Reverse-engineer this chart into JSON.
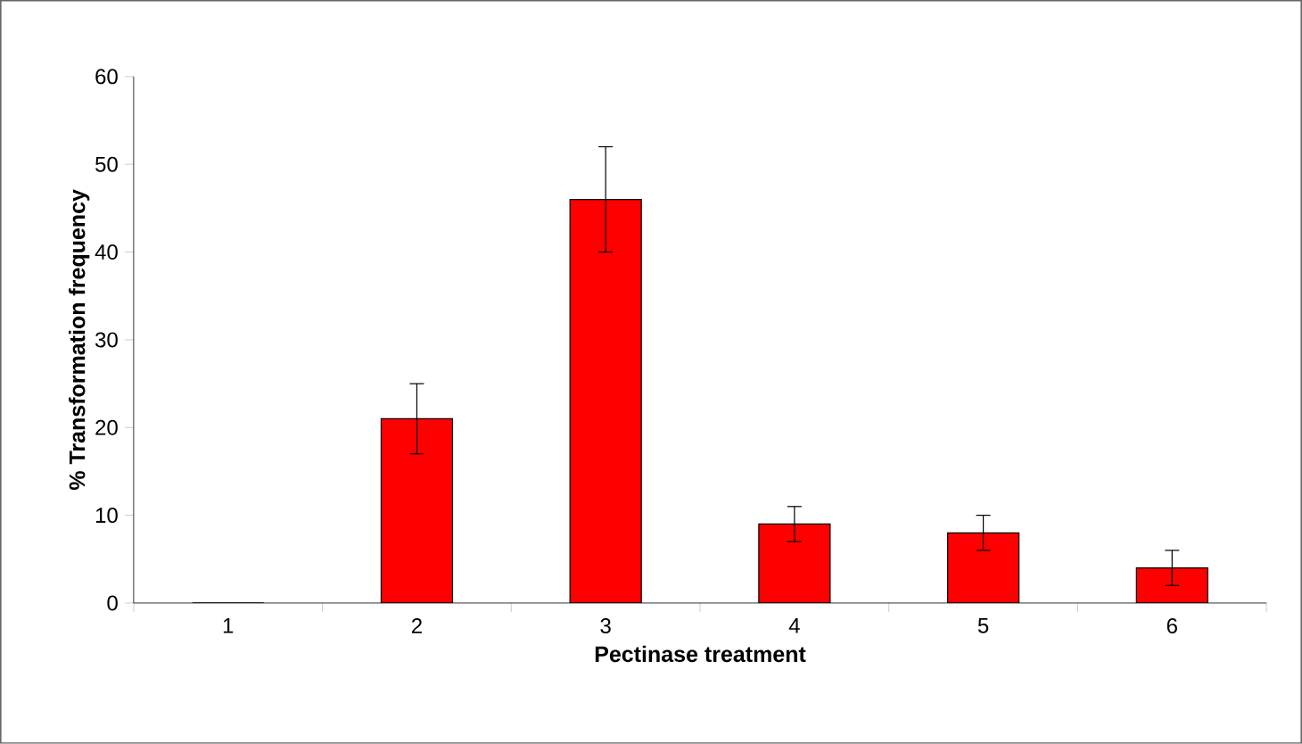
{
  "chart_data": {
    "type": "bar",
    "xlabel": "Pectinase treatment",
    "ylabel": "% Transformation frequency",
    "categories": [
      "1",
      "2",
      "3",
      "4",
      "5",
      "6"
    ],
    "values": [
      0,
      21,
      46,
      9,
      8,
      4
    ],
    "errors": [
      null,
      4,
      6,
      2,
      2,
      2
    ],
    "color": "#ff0000",
    "ylim": [
      0,
      60
    ],
    "yticks": [
      0,
      10,
      20,
      30,
      40,
      50,
      60
    ],
    "grid": false
  }
}
